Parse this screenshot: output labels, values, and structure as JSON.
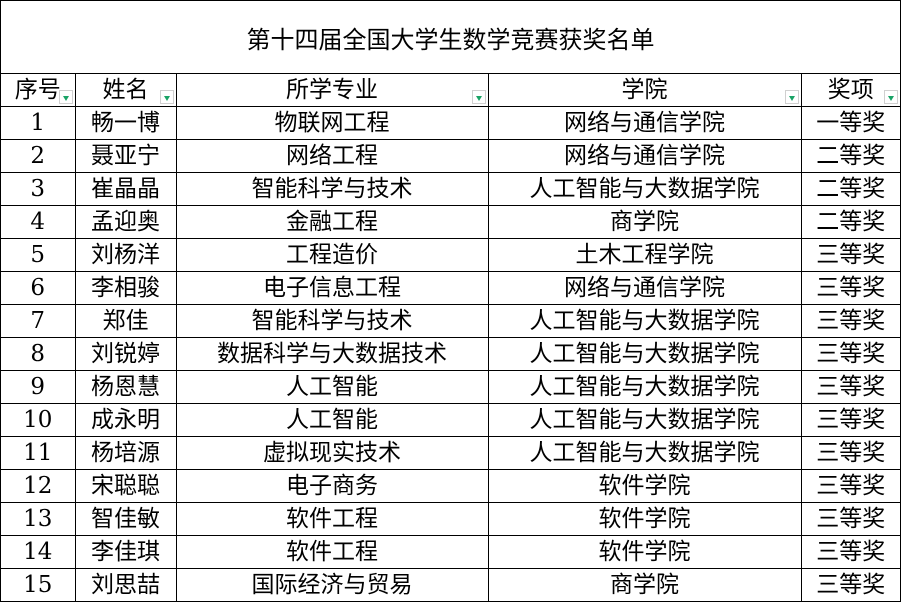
{
  "title": "第十四届全国大学生数学竞赛获奖名单",
  "columns": [
    "序号",
    "姓名",
    "所学专业",
    "学院",
    "奖项"
  ],
  "filter_color": "#1aa366",
  "rows": [
    [
      "1",
      "畅一博",
      "物联网工程",
      "网络与通信学院",
      "一等奖"
    ],
    [
      "2",
      "聂亚宁",
      "网络工程",
      "网络与通信学院",
      "二等奖"
    ],
    [
      "3",
      "崔晶晶",
      "智能科学与技术",
      "人工智能与大数据学院",
      "二等奖"
    ],
    [
      "4",
      "孟迎奥",
      "金融工程",
      "商学院",
      "二等奖"
    ],
    [
      "5",
      "刘杨洋",
      "工程造价",
      "土木工程学院",
      "三等奖"
    ],
    [
      "6",
      "李相骏",
      "电子信息工程",
      "网络与通信学院",
      "三等奖"
    ],
    [
      "7",
      "郑佳",
      "智能科学与技术",
      "人工智能与大数据学院",
      "三等奖"
    ],
    [
      "8",
      "刘锐婷",
      "数据科学与大数据技术",
      "人工智能与大数据学院",
      "三等奖"
    ],
    [
      "9",
      "杨恩慧",
      "人工智能",
      "人工智能与大数据学院",
      "三等奖"
    ],
    [
      "10",
      "成永明",
      "人工智能",
      "人工智能与大数据学院",
      "三等奖"
    ],
    [
      "11",
      "杨培源",
      "虚拟现实技术",
      "人工智能与大数据学院",
      "三等奖"
    ],
    [
      "12",
      "宋聪聪",
      "电子商务",
      "软件学院",
      "三等奖"
    ],
    [
      "13",
      "智佳敏",
      "软件工程",
      "软件学院",
      "三等奖"
    ],
    [
      "14",
      "李佳琪",
      "软件工程",
      "软件学院",
      "三等奖"
    ],
    [
      "15",
      "刘思喆",
      "国际经济与贸易",
      "商学院",
      "三等奖"
    ]
  ]
}
